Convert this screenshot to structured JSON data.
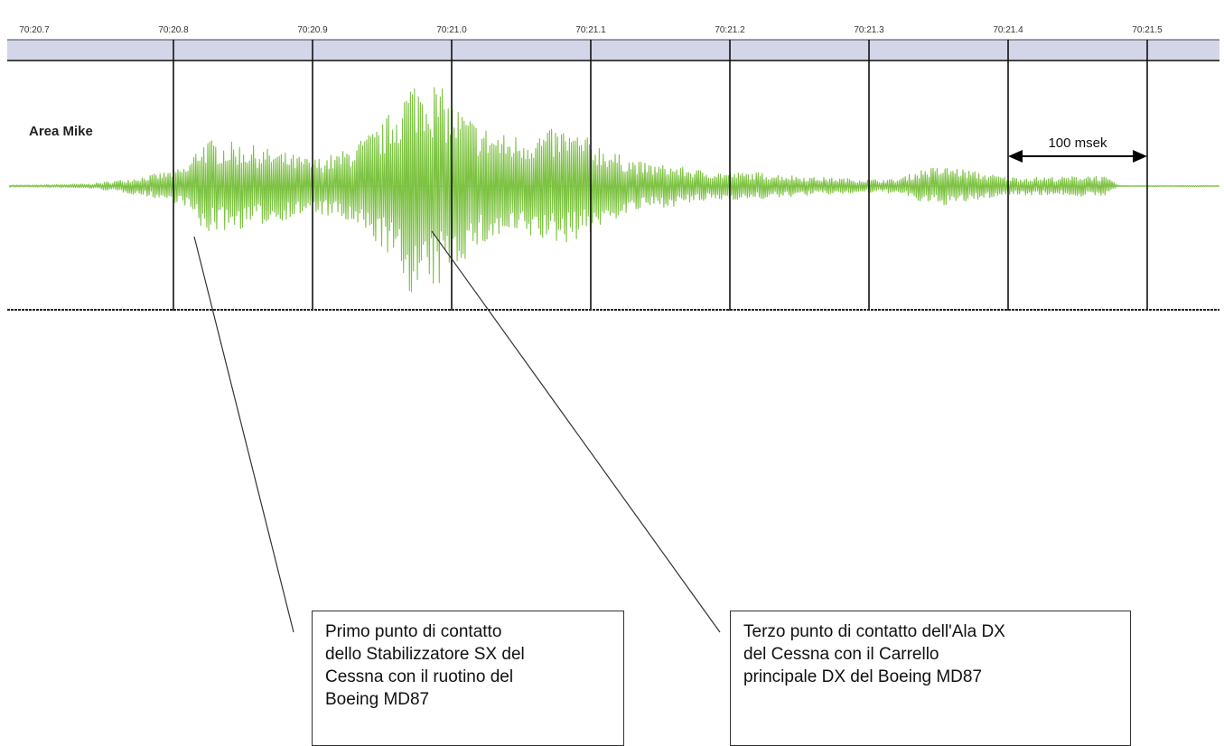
{
  "chart_data": {
    "type": "line",
    "title": "",
    "xlabel": "",
    "ylabel": "",
    "track_label": "Area Mike",
    "x_tick_labels": [
      "70:20.7",
      "70:20.8",
      "70:20.9",
      "70:21.0",
      "70:21.1",
      "70:21.2",
      "70:21.3",
      "70:21.4",
      "70:21.5"
    ],
    "xlim_seconds": [
      0.0,
      0.87
    ],
    "series": [
      {
        "color": "#7dc242",
        "envelope": {
          "t": [
            0.0,
            0.04,
            0.06,
            0.08,
            0.1,
            0.11,
            0.12,
            0.15,
            0.18,
            0.2,
            0.22,
            0.23,
            0.25,
            0.27,
            0.28,
            0.29,
            0.3,
            0.32,
            0.34,
            0.36,
            0.38,
            0.4,
            0.42,
            0.44,
            0.46,
            0.48,
            0.5,
            0.52,
            0.54,
            0.56,
            0.58,
            0.6,
            0.62,
            0.64,
            0.66,
            0.68,
            0.7,
            0.72,
            0.74,
            0.76,
            0.77,
            0.78,
            0.87
          ],
          "amp": [
            0.01,
            0.02,
            0.05,
            0.09,
            0.14,
            0.18,
            0.42,
            0.38,
            0.3,
            0.24,
            0.3,
            0.38,
            0.55,
            0.95,
            1.0,
            0.92,
            0.75,
            0.55,
            0.45,
            0.48,
            0.52,
            0.42,
            0.28,
            0.2,
            0.18,
            0.14,
            0.12,
            0.12,
            0.1,
            0.08,
            0.07,
            0.06,
            0.06,
            0.16,
            0.17,
            0.12,
            0.08,
            0.08,
            0.08,
            0.1,
            0.08,
            0.005,
            0.005
          ]
        }
      }
    ],
    "annotations": [
      {
        "text": "100 msek",
        "type": "dimension",
        "from_seconds": 0.7,
        "to_seconds": 0.8
      }
    ],
    "grid": true
  },
  "callouts": [
    {
      "text": "Primo punto di contatto\ndello Stabilizzatore SX del\nCessna con il ruotino del\nBoeing MD87",
      "points_to_seconds": 0.13
    },
    {
      "text": "Terzo punto di contatto dell'Ala DX\ndel Cessna con il Carrello\nprincipale DX del Boeing MD87",
      "points_to_seconds": 0.31
    }
  ],
  "colors": {
    "waveform": "#7dc242",
    "ruler": "#d3d6e8",
    "grid": "#111111"
  }
}
